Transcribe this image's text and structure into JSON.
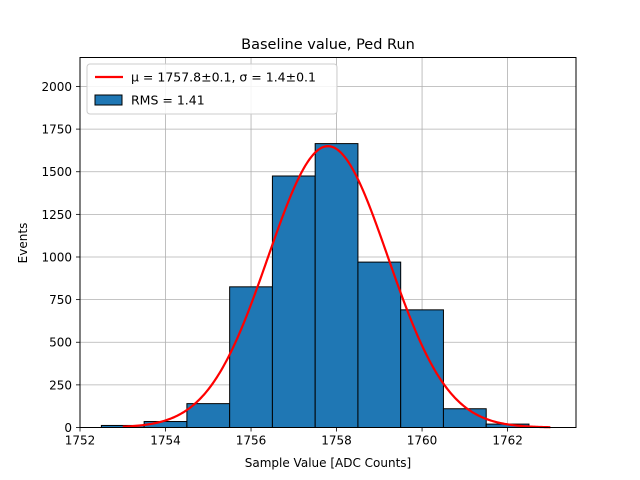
{
  "chart_data": {
    "type": "bar",
    "title": "Baseline value, Ped Run",
    "xlabel": "Sample Value [ADC Counts]",
    "ylabel": "Events",
    "xlim": [
      1752,
      1763.6
    ],
    "ylim": [
      0,
      2170
    ],
    "grid": true,
    "legend_position": "top-left",
    "x_ticks": [
      1752,
      1754,
      1756,
      1758,
      1760,
      1762
    ],
    "y_ticks": [
      0,
      250,
      500,
      750,
      1000,
      1250,
      1500,
      1750,
      2000
    ],
    "histogram": {
      "name": "RMS = 1.41",
      "color": "#1f77b4",
      "bins": [
        {
          "x0": 1752.5,
          "x1": 1753.5,
          "count": 12
        },
        {
          "x0": 1753.5,
          "x1": 1754.5,
          "count": 35
        },
        {
          "x0": 1754.5,
          "x1": 1755.5,
          "count": 140
        },
        {
          "x0": 1755.5,
          "x1": 1756.5,
          "count": 825
        },
        {
          "x0": 1756.5,
          "x1": 1757.5,
          "count": 1475
        },
        {
          "x0": 1757.5,
          "x1": 1758.5,
          "count": 1665
        },
        {
          "x0": 1758.5,
          "x1": 1759.5,
          "count": 970
        },
        {
          "x0": 1759.5,
          "x1": 1760.5,
          "count": 690
        },
        {
          "x0": 1760.5,
          "x1": 1761.5,
          "count": 110
        },
        {
          "x0": 1761.5,
          "x1": 1762.5,
          "count": 20
        }
      ]
    },
    "fit": {
      "name": "μ = 1757.8±0.1, σ = 1.4±0.1",
      "color": "#ff0000",
      "mu": 1757.8,
      "sigma": 1.4,
      "amplitude": 1650,
      "x_range": [
        1753,
        1763
      ]
    }
  }
}
